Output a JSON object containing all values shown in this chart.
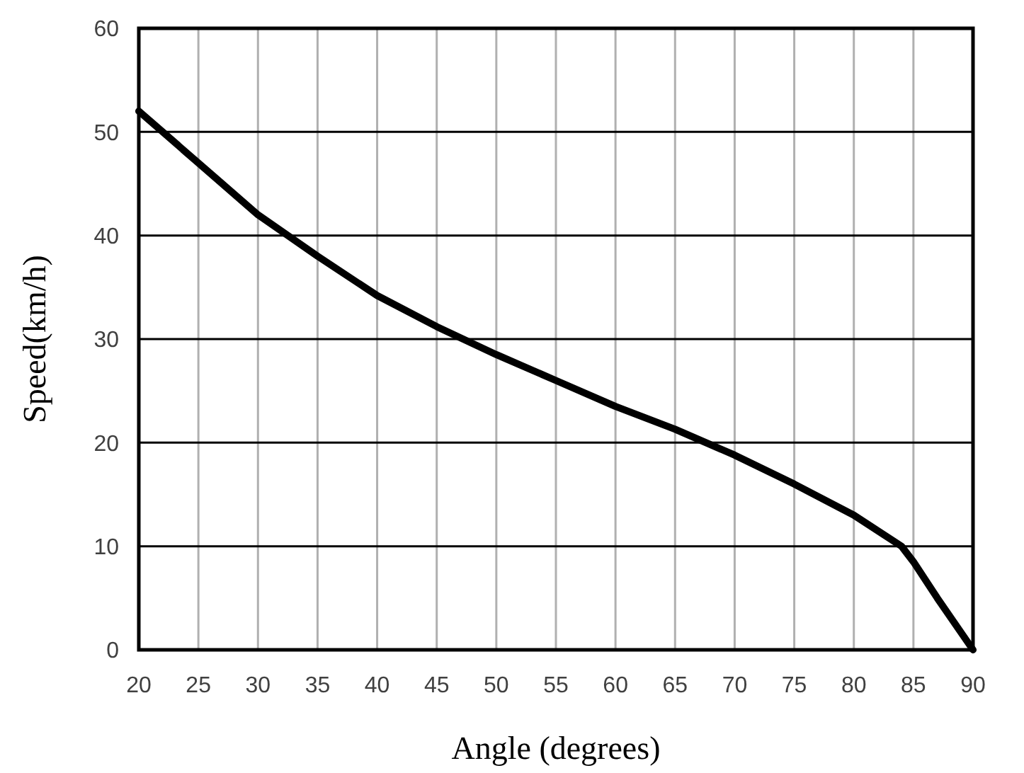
{
  "chart_data": {
    "type": "line",
    "xlabel": "Angle (degrees)",
    "ylabel": "Speed(km/h)",
    "xlim": [
      20,
      90
    ],
    "xticks": [
      20,
      25,
      30,
      35,
      40,
      45,
      50,
      55,
      60,
      65,
      70,
      75,
      80,
      85,
      90
    ],
    "ylim": [
      0,
      60
    ],
    "yticks": [
      0,
      10,
      20,
      30,
      40,
      50,
      60
    ],
    "grid": true,
    "line_style": "solid",
    "series": [
      {
        "color": "#000000",
        "x": [
          20,
          25,
          30,
          35,
          40,
          45,
          50,
          55,
          60,
          65,
          70,
          75,
          80,
          84,
          85,
          87,
          90
        ],
        "values": [
          52,
          47,
          42,
          38,
          34.2,
          31.2,
          28.5,
          26,
          23.5,
          21.3,
          18.8,
          16,
          13,
          10,
          8.5,
          5,
          0
        ]
      }
    ]
  }
}
